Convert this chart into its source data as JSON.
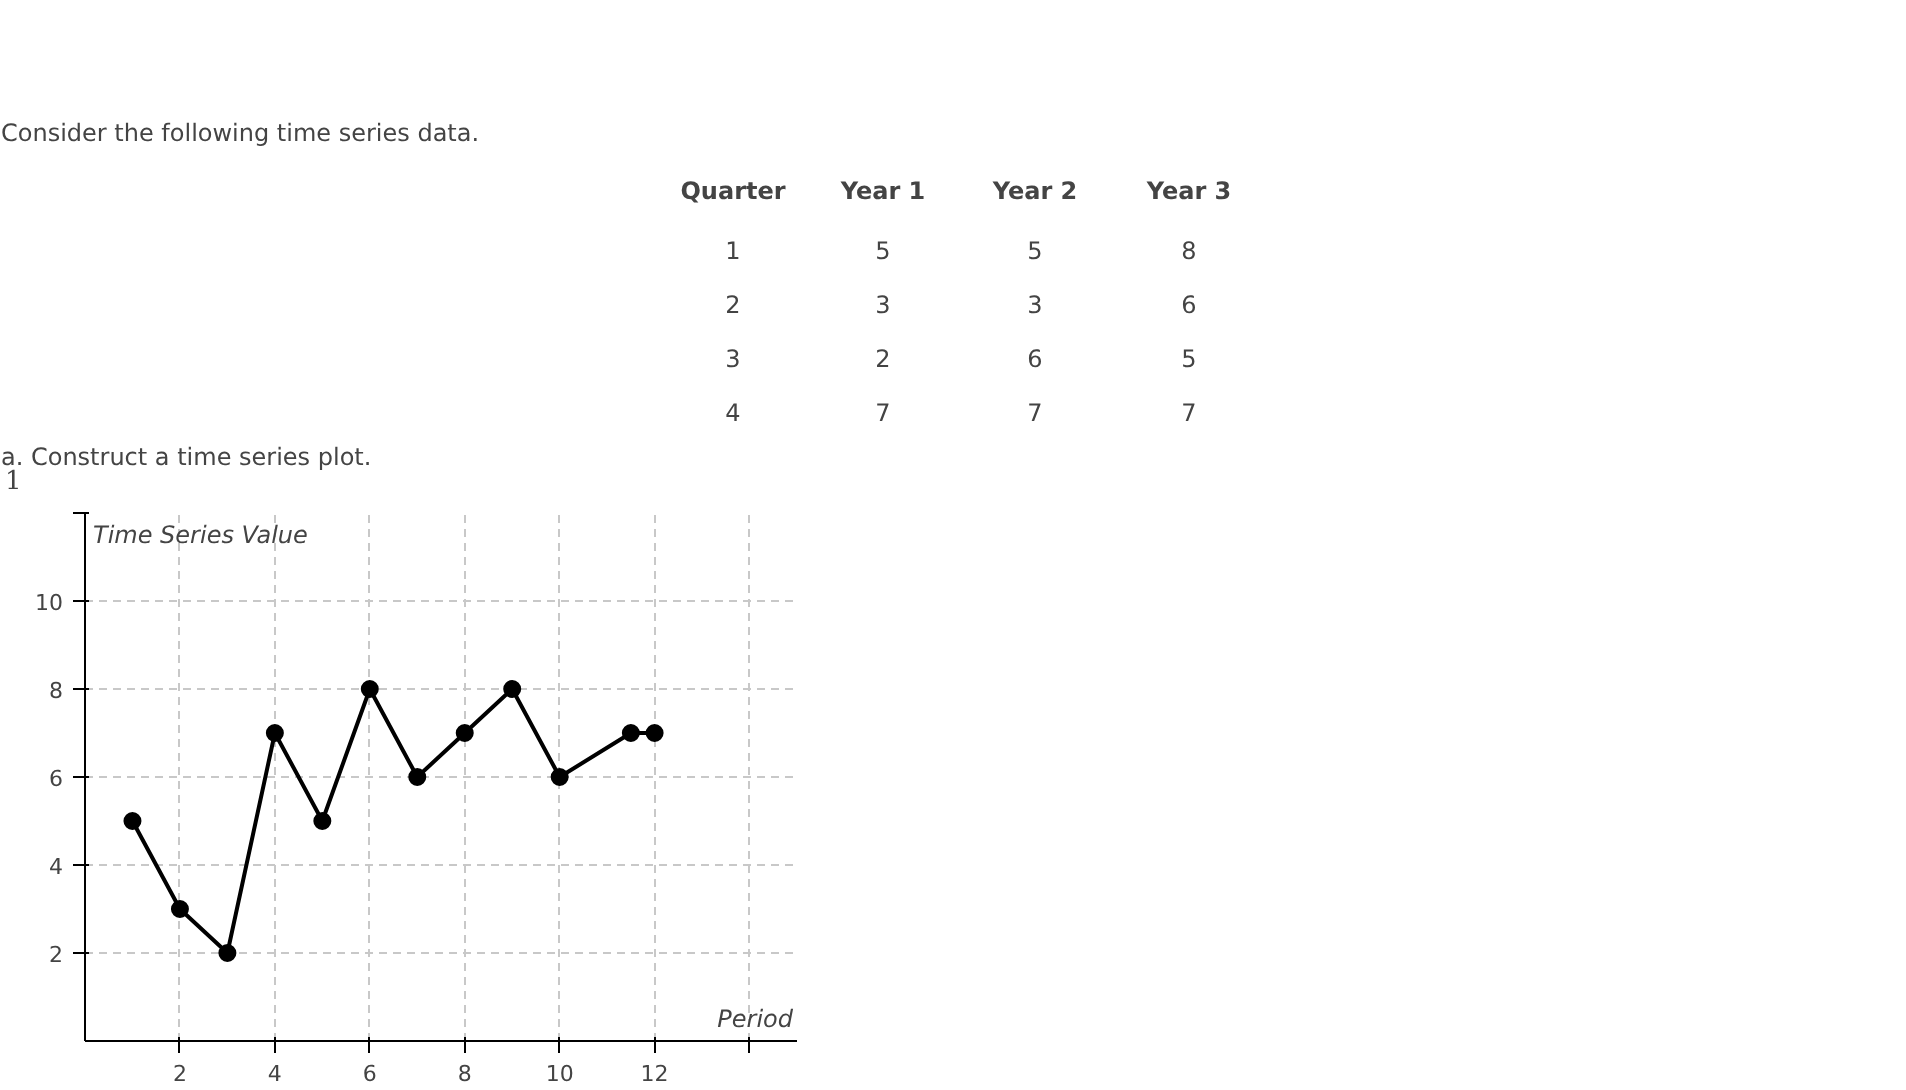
{
  "chart_data": {
    "type": "line",
    "x": [
      1,
      2,
      3,
      4,
      5,
      6,
      7,
      8,
      9,
      10,
      11.5,
      12
    ],
    "series": [
      {
        "color": "#000000",
        "values": [
          5,
          3,
          2,
          7,
          5,
          8,
          6,
          7,
          8,
          6,
          7,
          7
        ]
      }
    ],
    "xlabel": "Period",
    "ylabel": "Time Series Value",
    "xlim": [
      0,
      15
    ],
    "ylim": [
      0,
      12
    ],
    "xticks": [
      2,
      4,
      6,
      8,
      10,
      12,
      {
        "value": 14,
        "label": null
      }
    ],
    "yticks": [
      2,
      4,
      6,
      8,
      10,
      {
        "value": 12,
        "label": null
      }
    ],
    "grid": true,
    "marker": "circle",
    "line_style": "solid",
    "annotations": [
      "Consider the following time series data.",
      "Quarter\tYear 1\tYear 2\tYear 3",
      "1\t5\t5\t8",
      "2\t3\t3\t6",
      "3\t2\t6\t5",
      "4\t7\t7\t7",
      "a. Construct a time series plot.",
      "1"
    ]
  }
}
